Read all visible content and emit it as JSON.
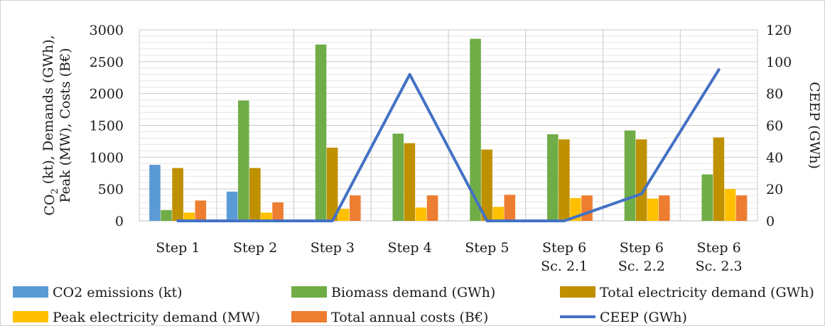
{
  "chart_data": {
    "type": "bar",
    "categories": [
      [
        "Step 1"
      ],
      [
        "Step 2"
      ],
      [
        "Step 3"
      ],
      [
        "Step 4"
      ],
      [
        "Step 5"
      ],
      [
        "Step 6",
        "Sc. 2.1"
      ],
      [
        "Step 6",
        "Sc. 2.2"
      ],
      [
        "Step 6",
        "Sc. 2.3"
      ]
    ],
    "ylabel_lines": [
      "CO",
      "2",
      " (kt), Demands (GWh),",
      "Peak (MW), Costs (B€)"
    ],
    "y2label": "CEEP (GWh)",
    "ylim": [
      0,
      3000
    ],
    "yticks": [
      0,
      500,
      1000,
      1500,
      2000,
      2500,
      3000
    ],
    "y2lim": [
      0,
      120
    ],
    "y2ticks": [
      0,
      20,
      40,
      60,
      80,
      100,
      120
    ],
    "grid": "both",
    "legend_position": "bottom",
    "series": [
      {
        "name": "CO2 emissions (kt)",
        "kind": "bar",
        "axis": "left",
        "color": "#5b9bd5",
        "values": [
          880,
          460,
          0,
          0,
          0,
          0,
          0,
          0
        ]
      },
      {
        "name": "Biomass demand (GWh)",
        "kind": "bar",
        "axis": "left",
        "color": "#70ad47",
        "values": [
          170,
          1890,
          2770,
          1370,
          2860,
          1360,
          1420,
          730
        ]
      },
      {
        "name": "Total electricity demand (GWh)",
        "kind": "bar",
        "axis": "left",
        "color": "#bf9000",
        "values": [
          830,
          830,
          1150,
          1220,
          1120,
          1280,
          1280,
          1310
        ]
      },
      {
        "name": "Peak electricity demand (MW)",
        "kind": "bar",
        "axis": "left",
        "color": "#ffc000",
        "values": [
          130,
          130,
          190,
          210,
          220,
          360,
          350,
          500
        ]
      },
      {
        "name": "Total annual costs (B€)",
        "kind": "bar",
        "axis": "left",
        "color": "#ed7d31",
        "values": [
          320,
          290,
          400,
          400,
          410,
          400,
          400,
          400
        ]
      },
      {
        "name": "CEEP (GWh)",
        "kind": "line",
        "axis": "right",
        "color": "#4472c4",
        "values": [
          0,
          0,
          0,
          92,
          0,
          0,
          17,
          95
        ]
      }
    ]
  }
}
